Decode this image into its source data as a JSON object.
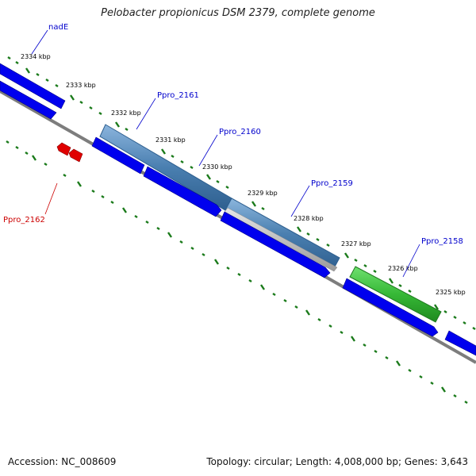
{
  "title": "Pelobacter propionicus DSM 2379, complete genome",
  "footer": {
    "accession": "Accession: NC_008609",
    "summary": "Topology: circular; Length: 4,008,000 bp; Genes: 3,643"
  },
  "colors": {
    "backbone": "#808080",
    "ticks": "#1a7a1a",
    "cds_forward": "#0000ee",
    "cds_reverse": "#e00000",
    "highlight_blue": "#5a8fbf",
    "highlight_gray": "#bbbbbb",
    "highlight_green": "#3ec13e",
    "label_blue": "#0000cc",
    "label_red": "#cc0000"
  },
  "tick_labels": [
    "2334 kbp",
    "2333 kbp",
    "2332 kbp",
    "2331 kbp",
    "2330 kbp",
    "2329 kbp",
    "2328 kbp",
    "2327 kbp",
    "2326 kbp",
    "2325 kbp"
  ],
  "gene_labels": [
    {
      "text": "nadE",
      "strand": "forward"
    },
    {
      "text": "Ppro_2161",
      "strand": "forward"
    },
    {
      "text": "Ppro_2160",
      "strand": "forward"
    },
    {
      "text": "Ppro_2159",
      "strand": "forward"
    },
    {
      "text": "Ppro_2158",
      "strand": "forward"
    },
    {
      "text": "Ppro_2162",
      "strand": "reverse"
    }
  ]
}
